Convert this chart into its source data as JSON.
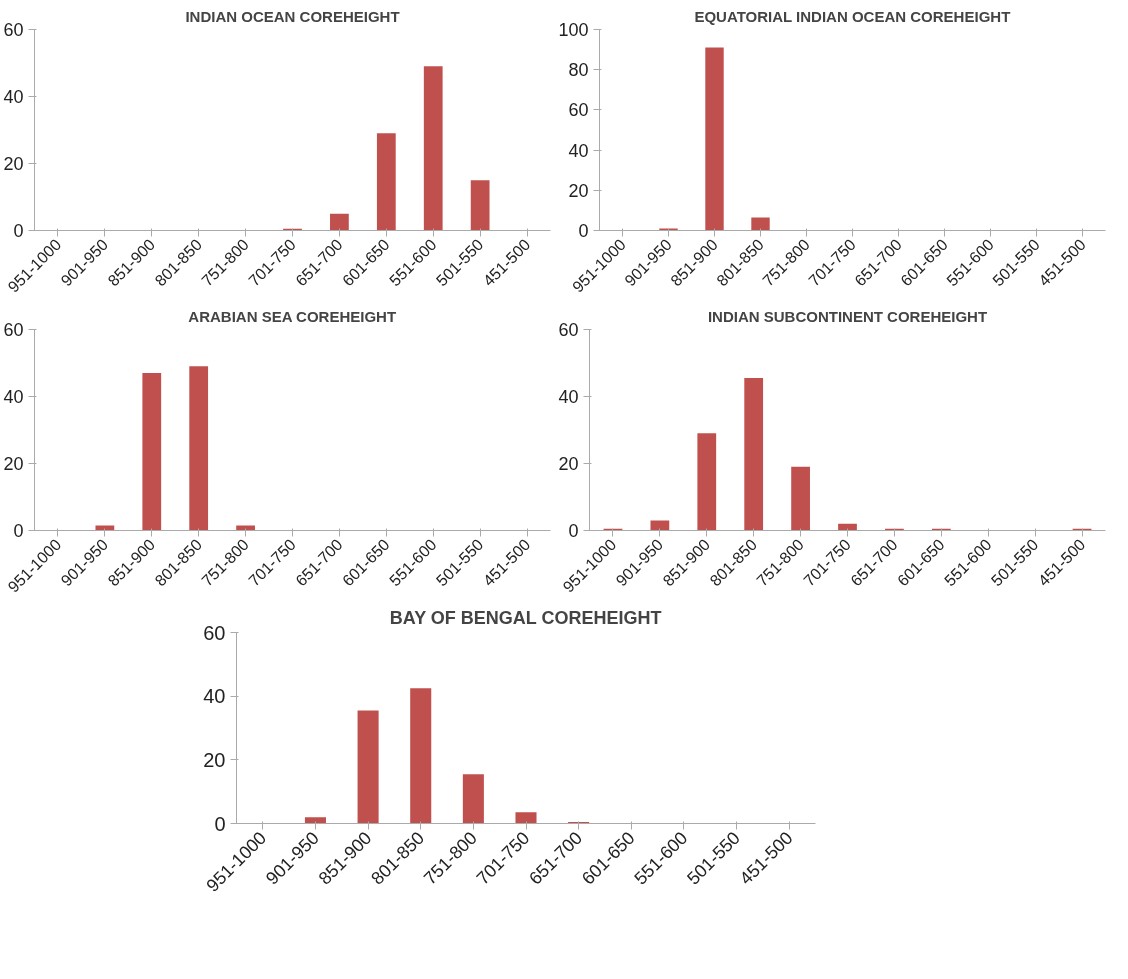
{
  "chart_data": [
    {
      "type": "bar",
      "title": "INDIAN OCEAN COREHEIGHT",
      "categories": [
        "951-1000",
        "901-950",
        "851-900",
        "801-850",
        "751-800",
        "701-750",
        "651-700",
        "601-650",
        "551-600",
        "501-550",
        "451-500"
      ],
      "values": [
        0,
        0,
        0,
        0,
        0,
        0.5,
        5,
        29,
        49,
        15,
        0
      ],
      "color": "#c0504d",
      "ylim": [
        0,
        60
      ],
      "yticks": [
        0,
        20,
        40,
        60
      ],
      "grid": false
    },
    {
      "type": "bar",
      "title": "EQUATORIAL INDIAN OCEAN COREHEIGHT",
      "categories": [
        "951-1000",
        "901-950",
        "851-900",
        "801-850",
        "751-800",
        "701-750",
        "651-700",
        "601-650",
        "551-600",
        "501-550",
        "451-500"
      ],
      "values": [
        0,
        1,
        91,
        6.5,
        0,
        0,
        0,
        0,
        0,
        0,
        0
      ],
      "color": "#c0504d",
      "ylim": [
        0,
        100
      ],
      "yticks": [
        0,
        20,
        40,
        60,
        80,
        100
      ],
      "grid": false
    },
    {
      "type": "bar",
      "title": "ARABIAN SEA COREHEIGHT",
      "categories": [
        "951-1000",
        "901-950",
        "851-900",
        "801-850",
        "751-800",
        "701-750",
        "651-700",
        "601-650",
        "551-600",
        "501-550",
        "451-500"
      ],
      "values": [
        0,
        1.5,
        47,
        49,
        1.5,
        0,
        0,
        0,
        0,
        0,
        0
      ],
      "color": "#c0504d",
      "ylim": [
        0,
        60
      ],
      "yticks": [
        0,
        20,
        40,
        60
      ],
      "grid": false
    },
    {
      "type": "bar",
      "title": "INDIAN SUBCONTINENT COREHEIGHT",
      "categories": [
        "951-1000",
        "901-950",
        "851-900",
        "801-850",
        "751-800",
        "701-750",
        "651-700",
        "601-650",
        "551-600",
        "501-550",
        "451-500"
      ],
      "values": [
        0.5,
        3,
        29,
        45.5,
        19,
        2,
        0.5,
        0.5,
        0,
        0,
        0.5
      ],
      "color": "#c0504d",
      "ylim": [
        0,
        60
      ],
      "yticks": [
        0,
        20,
        40,
        60
      ],
      "grid": false
    },
    {
      "type": "bar",
      "title": "BAY OF BENGAL COREHEIGHT",
      "categories": [
        "951-1000",
        "901-950",
        "851-900",
        "801-850",
        "751-800",
        "701-750",
        "651-700",
        "601-650",
        "551-600",
        "501-550",
        "451-500"
      ],
      "values": [
        0,
        2,
        35.5,
        42.5,
        15.5,
        3.5,
        0.5,
        0,
        0,
        0,
        0
      ],
      "color": "#c0504d",
      "ylim": [
        0,
        60
      ],
      "yticks": [
        0,
        20,
        40,
        60
      ],
      "grid": false
    }
  ]
}
